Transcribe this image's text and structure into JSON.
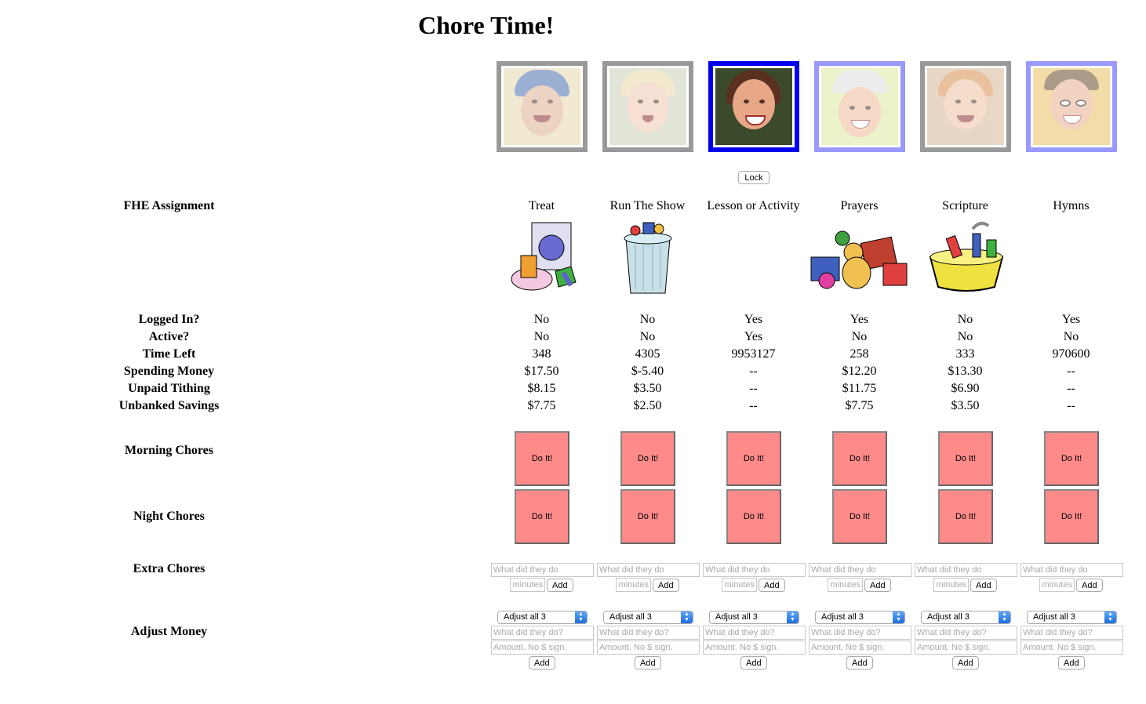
{
  "title": "Chore Time!",
  "lock_label": "Lock",
  "row_labels": {
    "fhe": "FHE Assignment",
    "logged_in": "Logged In?",
    "active": "Active?",
    "time_left": "Time Left",
    "spending": "Spending Money",
    "tithing": "Unpaid Tithing",
    "savings": "Unbanked Savings",
    "morning": "Morning Chores",
    "night": "Night Chores",
    "extra": "Extra Chores",
    "adjust": "Adjust Money"
  },
  "people": [
    {
      "assignment": "Treat",
      "assignment_icon": "laundry-machine-icon",
      "logged_in": "No",
      "active": "No",
      "time_left": "348",
      "spending": "$17.50",
      "tithing": "$8.15",
      "savings": "$7.75"
    },
    {
      "assignment": "Run The Show",
      "assignment_icon": "trash-can-icon",
      "logged_in": "No",
      "active": "No",
      "time_left": "4305",
      "spending": "$-5.40",
      "tithing": "$3.50",
      "savings": "$2.50"
    },
    {
      "assignment": "Lesson or Activity",
      "assignment_icon": "",
      "logged_in": "Yes",
      "active": "Yes",
      "time_left": "9953127",
      "spending": "--",
      "tithing": "--",
      "savings": "--"
    },
    {
      "assignment": "Prayers",
      "assignment_icon": "toy-pile-icon",
      "logged_in": "Yes",
      "active": "No",
      "time_left": "258",
      "spending": "$12.20",
      "tithing": "$11.75",
      "savings": "$7.75"
    },
    {
      "assignment": "Scripture",
      "assignment_icon": "dish-tub-icon",
      "logged_in": "No",
      "active": "No",
      "time_left": "333",
      "spending": "$13.30",
      "tithing": "$6.90",
      "savings": "$3.50"
    },
    {
      "assignment": "Hymns",
      "assignment_icon": "",
      "logged_in": "Yes",
      "active": "No",
      "time_left": "970600",
      "spending": "--",
      "tithing": "--",
      "savings": "--"
    }
  ],
  "controls": {
    "do_it_label": "Do It!",
    "extra_placeholder": "What did they do",
    "minutes_placeholder": "minutes",
    "add_label": "Add",
    "adjust_option": "Adjust all 3",
    "adjust_what_placeholder": "What did they do?",
    "amount_placeholder": "Amount. No $ sign."
  },
  "colors": {
    "selected_border": "#0000ee",
    "active_border": "#9999ff",
    "inactive_border": "#999999",
    "do_it_bg": "#ff8a8a"
  }
}
